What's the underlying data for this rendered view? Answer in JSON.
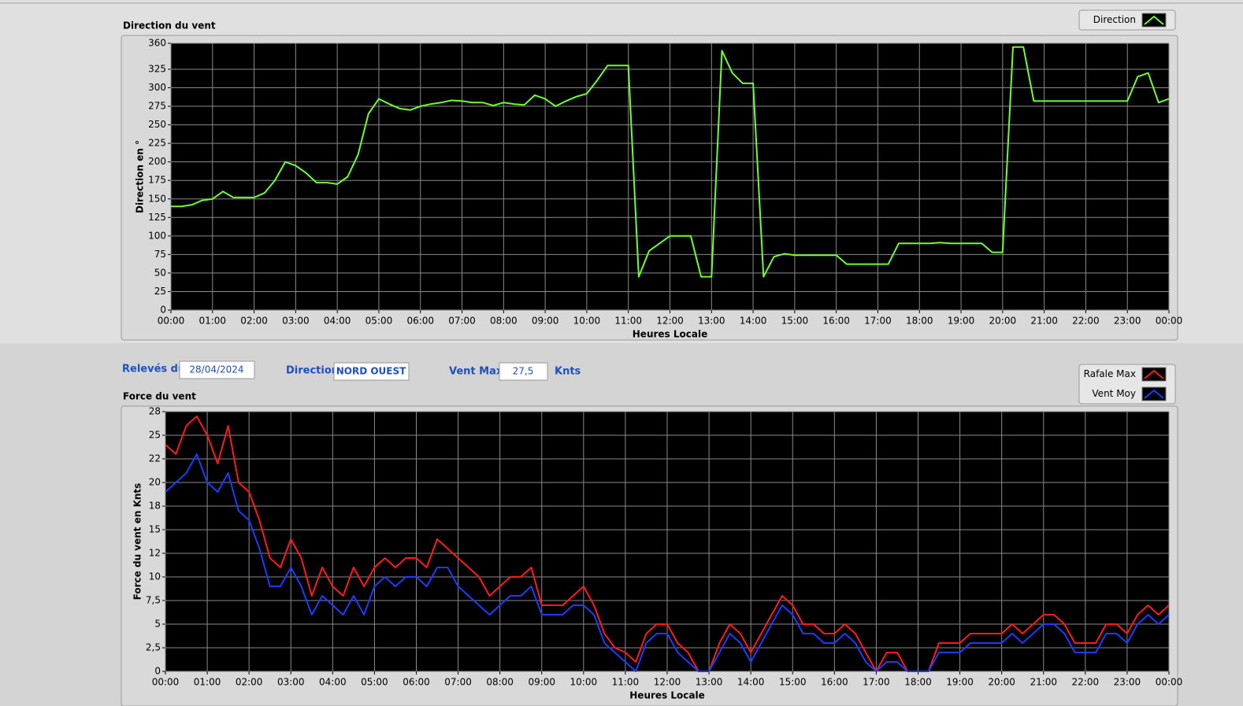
{
  "chart_data": [
    {
      "type": "line",
      "title": "Direction du vent",
      "xlabel": "Heures Locale",
      "ylabel": "Direction en °",
      "grid": true,
      "legend": "top-right",
      "x": [
        0,
        0.25,
        0.5,
        0.75,
        1,
        1.25,
        1.5,
        1.75,
        2,
        2.25,
        2.5,
        2.75,
        3,
        3.25,
        3.5,
        3.75,
        4,
        4.25,
        4.5,
        4.75,
        5,
        5.25,
        5.5,
        5.75,
        6,
        6.25,
        6.5,
        6.75,
        7,
        7.25,
        7.5,
        7.75,
        8,
        8.25,
        8.5,
        8.75,
        9,
        9.25,
        9.5,
        9.75,
        10,
        10.25,
        10.5,
        10.75,
        11,
        11.25,
        11.5,
        11.75,
        12,
        12.25,
        12.5,
        12.75,
        13,
        13.25,
        13.5,
        13.75,
        14,
        14.25,
        14.5,
        14.75,
        15,
        15.25,
        15.5,
        15.75,
        16,
        16.25,
        16.5,
        16.75,
        17,
        17.25,
        17.5,
        17.75,
        18,
        18.25,
        18.5,
        18.75,
        19,
        19.25,
        19.5,
        19.75,
        20,
        20.25,
        20.5,
        20.75,
        21,
        21.25,
        21.5,
        21.75,
        22,
        22.25,
        22.5,
        22.75,
        23,
        23.25,
        23.5,
        23.75,
        24
      ],
      "series": [
        {
          "name": "Direction",
          "color": "#6cff2e",
          "values": [
            140,
            140,
            142,
            148,
            150,
            160,
            152,
            152,
            152,
            158,
            175,
            200,
            195,
            185,
            172,
            172,
            170,
            180,
            210,
            265,
            285,
            278,
            272,
            270,
            275,
            278,
            280,
            283,
            282,
            280,
            280,
            276,
            280,
            278,
            277,
            290,
            285,
            275,
            282,
            288,
            292,
            310,
            330,
            330,
            330,
            45,
            80,
            90,
            100,
            100,
            100,
            45,
            45,
            350,
            320,
            306,
            306,
            45,
            72,
            76,
            74,
            74,
            74,
            74,
            74,
            62,
            62,
            62,
            62,
            62,
            90,
            90,
            90,
            90,
            91,
            90,
            90,
            90,
            90,
            78,
            78,
            355,
            355,
            282,
            282,
            282,
            282,
            282,
            282,
            282,
            282,
            282,
            282,
            315,
            320,
            280,
            285
          ]
        }
      ],
      "xlim": [
        0,
        24
      ],
      "xticks": [
        {
          "value": 0,
          "label": "00:00"
        },
        {
          "value": 1,
          "label": "01:00"
        },
        {
          "value": 2,
          "label": "02:00"
        },
        {
          "value": 3,
          "label": "03:00"
        },
        {
          "value": 4,
          "label": "04:00"
        },
        {
          "value": 5,
          "label": "05:00"
        },
        {
          "value": 6,
          "label": "06:00"
        },
        {
          "value": 7,
          "label": "07:00"
        },
        {
          "value": 8,
          "label": "08:00"
        },
        {
          "value": 9,
          "label": "09:00"
        },
        {
          "value": 10,
          "label": "10:00"
        },
        {
          "value": 11,
          "label": "11:00"
        },
        {
          "value": 12,
          "label": "12:00"
        },
        {
          "value": 13,
          "label": "13:00"
        },
        {
          "value": 14,
          "label": "14:00"
        },
        {
          "value": 15,
          "label": "15:00"
        },
        {
          "value": 16,
          "label": "16:00"
        },
        {
          "value": 17,
          "label": "17:00"
        },
        {
          "value": 18,
          "label": "18:00"
        },
        {
          "value": 19,
          "label": "19:00"
        },
        {
          "value": 20,
          "label": "20:00"
        },
        {
          "value": 21,
          "label": "21:00"
        },
        {
          "value": 22,
          "label": "22:00"
        },
        {
          "value": 23,
          "label": "23:00"
        },
        {
          "value": 24,
          "label": "00:00"
        }
      ],
      "ylim": [
        0,
        360
      ],
      "yticks": [
        0,
        25,
        50,
        75,
        100,
        125,
        150,
        175,
        200,
        225,
        250,
        275,
        300,
        325,
        360
      ]
    },
    {
      "type": "line",
      "title": "Force du vent",
      "xlabel": "Heures Locale",
      "ylabel": "Force du vent en Knts",
      "grid": true,
      "legend": "top-right",
      "x": [
        0,
        0.25,
        0.5,
        0.75,
        1,
        1.25,
        1.5,
        1.75,
        2,
        2.25,
        2.5,
        2.75,
        3,
        3.25,
        3.5,
        3.75,
        4,
        4.25,
        4.5,
        4.75,
        5,
        5.25,
        5.5,
        5.75,
        6,
        6.25,
        6.5,
        6.75,
        7,
        7.25,
        7.5,
        7.75,
        8,
        8.25,
        8.5,
        8.75,
        9,
        9.25,
        9.5,
        9.75,
        10,
        10.25,
        10.5,
        10.75,
        11,
        11.25,
        11.5,
        11.75,
        12,
        12.25,
        12.5,
        12.75,
        13,
        13.25,
        13.5,
        13.75,
        14,
        14.25,
        14.5,
        14.75,
        15,
        15.25,
        15.5,
        15.75,
        16,
        16.25,
        16.5,
        16.75,
        17,
        17.25,
        17.5,
        17.75,
        18,
        18.25,
        18.5,
        18.75,
        19,
        19.25,
        19.5,
        19.75,
        20,
        20.25,
        20.5,
        20.75,
        21,
        21.25,
        21.5,
        21.75,
        22,
        22.25,
        22.5,
        22.75,
        23,
        23.25,
        23.5,
        23.75,
        24
      ],
      "series": [
        {
          "name": "Rafale Max",
          "color": "#ff1a1a",
          "values": [
            24,
            23,
            26,
            27,
            25,
            22,
            26,
            20,
            19,
            16,
            12,
            11,
            14,
            12,
            8,
            11,
            9,
            8,
            11,
            9,
            11,
            12,
            11,
            12,
            12,
            11,
            14,
            13,
            12,
            11,
            10,
            8,
            9,
            10,
            10,
            11,
            7,
            7,
            7,
            8,
            9,
            7,
            4,
            2.5,
            2,
            1,
            4,
            5,
            5,
            3,
            2,
            0,
            0,
            3,
            5,
            4,
            2,
            4,
            6,
            8,
            7,
            5,
            5,
            4,
            4,
            5,
            4,
            2,
            0,
            2,
            2,
            0,
            0,
            0,
            3,
            3,
            3,
            4,
            4,
            4,
            4,
            5,
            4,
            5,
            6,
            6,
            5,
            3,
            3,
            3,
            5,
            5,
            4,
            6,
            7,
            6,
            7
          ]
        },
        {
          "name": "Vent Moy",
          "color": "#1a3cff",
          "values": [
            19,
            20,
            21,
            23,
            20,
            19,
            21,
            17,
            16,
            13,
            9,
            9,
            11,
            9,
            6,
            8,
            7,
            6,
            8,
            6,
            9,
            10,
            9,
            10,
            10,
            9,
            11,
            11,
            9,
            8,
            7,
            6,
            7,
            8,
            8,
            9,
            6,
            6,
            6,
            7,
            7,
            6,
            3,
            2,
            1,
            0,
            3,
            4,
            4,
            2,
            1,
            0,
            0,
            2,
            4,
            3,
            1,
            3,
            5,
            7,
            6,
            4,
            4,
            3,
            3,
            4,
            3,
            1,
            0,
            1,
            1,
            0,
            0,
            0,
            2,
            2,
            2,
            3,
            3,
            3,
            3,
            4,
            3,
            4,
            5,
            5,
            4,
            2,
            2,
            2,
            4,
            4,
            3,
            5,
            6,
            5,
            6
          ]
        }
      ],
      "xlim": [
        0,
        24
      ],
      "xticks": [
        {
          "value": 0,
          "label": "00:00"
        },
        {
          "value": 1,
          "label": "01:00"
        },
        {
          "value": 2,
          "label": "02:00"
        },
        {
          "value": 3,
          "label": "03:00"
        },
        {
          "value": 4,
          "label": "04:00"
        },
        {
          "value": 5,
          "label": "05:00"
        },
        {
          "value": 6,
          "label": "06:00"
        },
        {
          "value": 7,
          "label": "07:00"
        },
        {
          "value": 8,
          "label": "08:00"
        },
        {
          "value": 9,
          "label": "09:00"
        },
        {
          "value": 10,
          "label": "10:00"
        },
        {
          "value": 11,
          "label": "11:00"
        },
        {
          "value": 12,
          "label": "12:00"
        },
        {
          "value": 13,
          "label": "13:00"
        },
        {
          "value": 14,
          "label": "14:00"
        },
        {
          "value": 15,
          "label": "15:00"
        },
        {
          "value": 16,
          "label": "16:00"
        },
        {
          "value": 17,
          "label": "17:00"
        },
        {
          "value": 18,
          "label": "18:00"
        },
        {
          "value": 19,
          "label": "19:00"
        },
        {
          "value": 20,
          "label": "20:00"
        },
        {
          "value": 21,
          "label": "21:00"
        },
        {
          "value": 22,
          "label": "22:00"
        },
        {
          "value": 23,
          "label": "23:00"
        },
        {
          "value": 24,
          "label": "00:00"
        }
      ],
      "ylim": [
        0,
        27.5
      ],
      "yticks": [
        0,
        {
          "value": 2.5,
          "label": "2,5"
        },
        5,
        {
          "value": 7.5,
          "label": "7,5"
        },
        10,
        {
          "value": 12.5,
          "label": "12"
        },
        15,
        {
          "value": 17.5,
          "label": "18"
        },
        20,
        {
          "value": 22.5,
          "label": "22"
        },
        25,
        {
          "value": 27.5,
          "label": "28"
        }
      ]
    }
  ],
  "panel": {
    "date_label": "Relevés du",
    "date": "28/04/2024",
    "direction_label": "Direction",
    "direction": "NORD OUEST",
    "max_label": "Vent Max",
    "max": "27,5",
    "unit": "Knts"
  }
}
